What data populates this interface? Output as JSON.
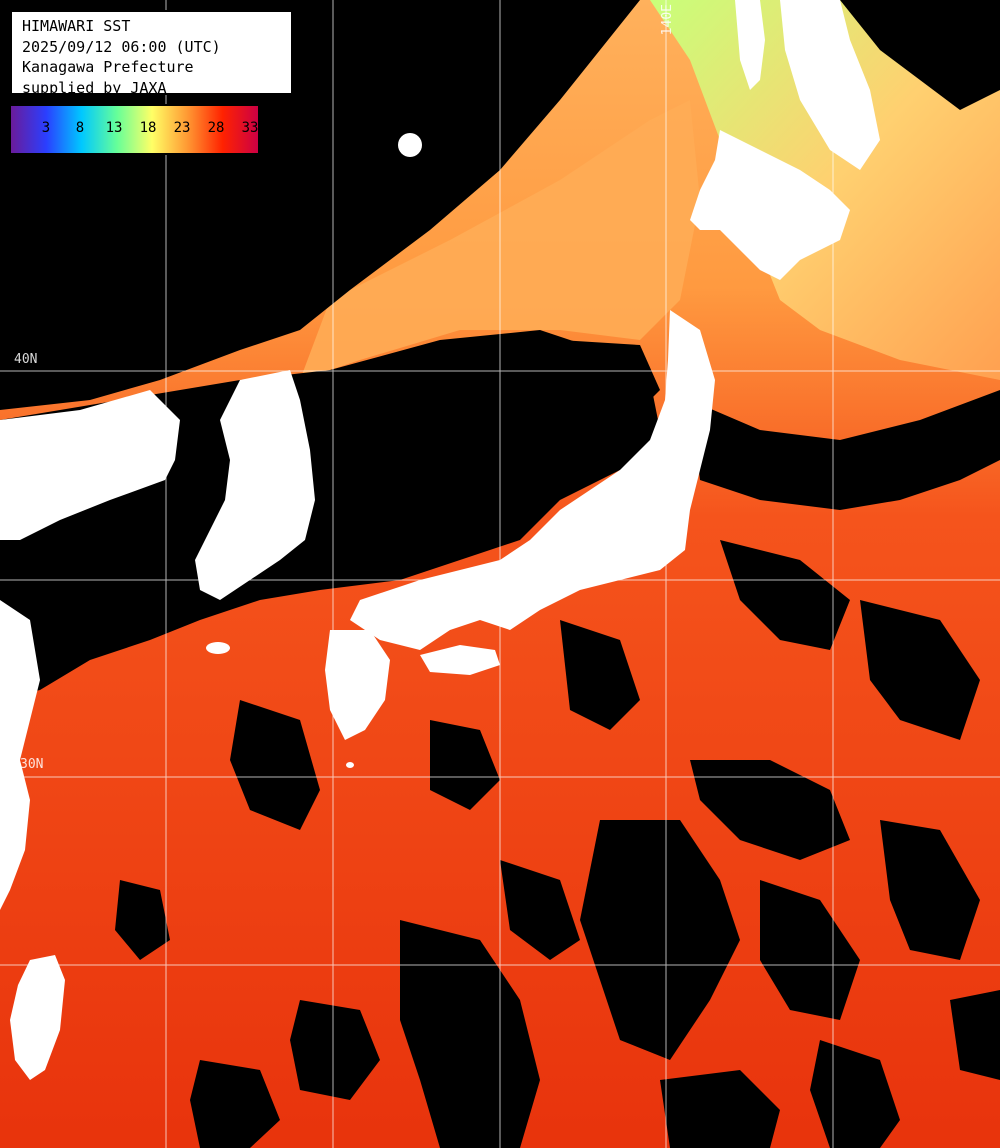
{
  "title": "HIMAWARI SST",
  "timestamp": "2025/09/12 06:00 (UTC)",
  "region": "Kanagawa Prefecture",
  "credit": "supplied by JAXA",
  "legend": {
    "ticks": [
      "3",
      "8",
      "13",
      "18",
      "23",
      "28",
      "33"
    ],
    "colors": [
      "#6a1b9a",
      "#2a3fff",
      "#00c8ff",
      "#66ff99",
      "#ffff66",
      "#ff9933",
      "#ff2200",
      "#cc0044"
    ]
  },
  "grid": {
    "lat_labels": [
      "40N",
      "30N"
    ],
    "lon_labels": [
      "140E"
    ]
  },
  "colors": {
    "land": "#ffffff",
    "cloud": "#000000",
    "warm_sea": "#ee3a10",
    "mid_sea": "#ff8a3c",
    "cool_sea": "#e8c060",
    "cold_sea": "#9ff07a"
  }
}
